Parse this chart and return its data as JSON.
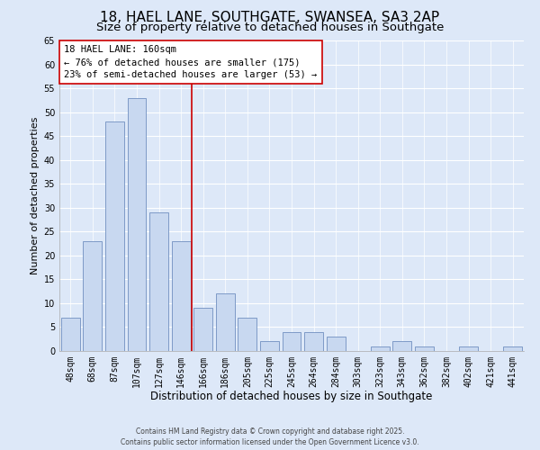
{
  "title": "18, HAEL LANE, SOUTHGATE, SWANSEA, SA3 2AP",
  "subtitle": "Size of property relative to detached houses in Southgate",
  "xlabel": "Distribution of detached houses by size in Southgate",
  "ylabel": "Number of detached properties",
  "categories": [
    "48sqm",
    "68sqm",
    "87sqm",
    "107sqm",
    "127sqm",
    "146sqm",
    "166sqm",
    "186sqm",
    "205sqm",
    "225sqm",
    "245sqm",
    "264sqm",
    "284sqm",
    "303sqm",
    "323sqm",
    "343sqm",
    "362sqm",
    "382sqm",
    "402sqm",
    "421sqm",
    "441sqm"
  ],
  "values": [
    7,
    23,
    48,
    53,
    29,
    23,
    9,
    12,
    7,
    2,
    4,
    4,
    3,
    0,
    1,
    2,
    1,
    0,
    1,
    0,
    1
  ],
  "bar_color": "#c8d8f0",
  "bar_edge_color": "#7090c0",
  "vline_x_index": 5.5,
  "vline_color": "#cc0000",
  "ylim": [
    0,
    65
  ],
  "yticks": [
    0,
    5,
    10,
    15,
    20,
    25,
    30,
    35,
    40,
    45,
    50,
    55,
    60,
    65
  ],
  "annotation_title": "18 HAEL LANE: 160sqm",
  "annotation_line1": "← 76% of detached houses are smaller (175)",
  "annotation_line2": "23% of semi-detached houses are larger (53) →",
  "annotation_box_edge": "#cc0000",
  "background_color": "#dde8f8",
  "plot_bg_color": "#dde8f8",
  "footer_line1": "Contains HM Land Registry data © Crown copyright and database right 2025.",
  "footer_line2": "Contains public sector information licensed under the Open Government Licence v3.0.",
  "title_fontsize": 11,
  "subtitle_fontsize": 9.5,
  "xlabel_fontsize": 8.5,
  "ylabel_fontsize": 8,
  "tick_fontsize": 7,
  "annotation_fontsize": 7.5,
  "footer_fontsize": 5.5
}
